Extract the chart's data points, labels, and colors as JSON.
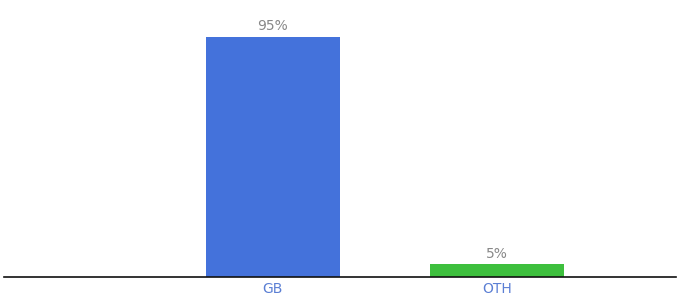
{
  "categories": [
    "GB",
    "OTH"
  ],
  "values": [
    95,
    5
  ],
  "bar_colors": [
    "#4472db",
    "#3dbf3d"
  ],
  "labels": [
    "95%",
    "5%"
  ],
  "background_color": "#ffffff",
  "ylim": [
    0,
    108
  ],
  "bar_width": 0.6,
  "tick_color": "#5b7fd4",
  "label_fontsize": 10,
  "axis_label_fontsize": 10,
  "label_color": "#888888"
}
